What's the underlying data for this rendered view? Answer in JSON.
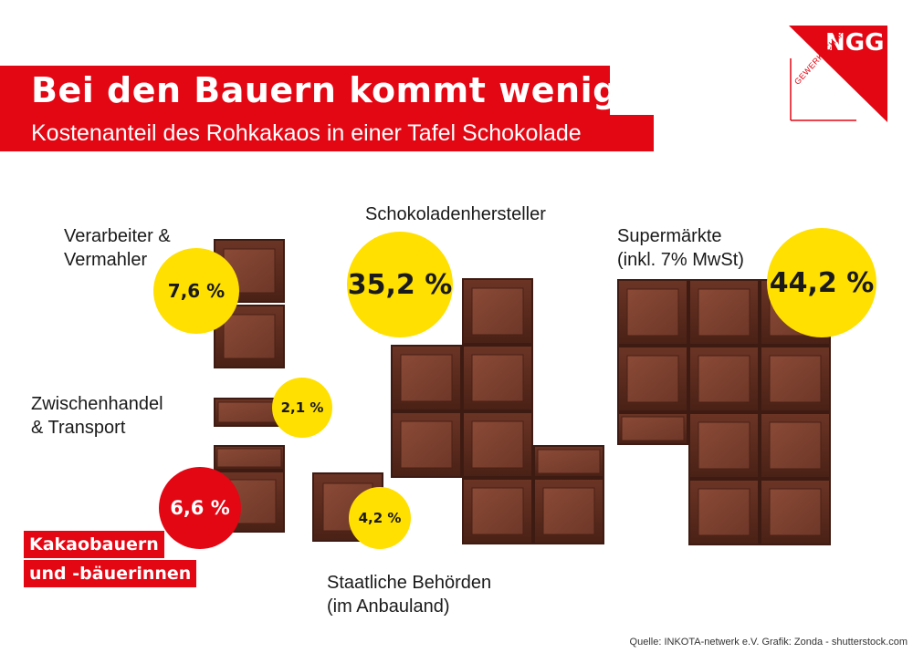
{
  "header": {
    "title": "Bei den Bauern kommt wenig an",
    "subtitle": "Kostenanteil des Rohkakaos in einer Tafel Schokolade"
  },
  "logo": {
    "text": "NGG",
    "subtext": "GEWERKSCHAFT"
  },
  "chart_data": {
    "type": "pictogram",
    "title": "Bei den Bauern kommt wenig an",
    "subtitle": "Kostenanteil des Rohkakaos in einer Tafel Schokolade",
    "unit": "%",
    "segments": [
      {
        "label_lines": [
          "Verarbeiter &",
          "Vermahler"
        ],
        "value": 7.6,
        "value_label": "7,6 %"
      },
      {
        "label_lines": [
          "Zwischenhandel",
          "& Transport"
        ],
        "value": 2.1,
        "value_label": "2,1 %"
      },
      {
        "label_lines": [
          "Kakaobauern",
          "und -bäuerinnen"
        ],
        "value": 6.6,
        "value_label": "6,6 %"
      },
      {
        "label_lines": [
          "Staatliche Behörden",
          "(im Anbauland)"
        ],
        "value": 4.2,
        "value_label": "4,2 %"
      },
      {
        "label_lines": [
          "Schokoladenhersteller"
        ],
        "value": 35.2,
        "value_label": "35,2 %"
      },
      {
        "label_lines": [
          "Supermärkte",
          "(inkl. 7% MwSt)"
        ],
        "value": 44.2,
        "value_label": "44,2 %"
      }
    ],
    "colors": {
      "accent": "#e30613",
      "bubble": "#ffe000",
      "chocolate": "#5a2a1e"
    }
  },
  "source": "Quelle: INKOTA-netwerk e.V. Grafik: Zonda - shutterstock.com"
}
